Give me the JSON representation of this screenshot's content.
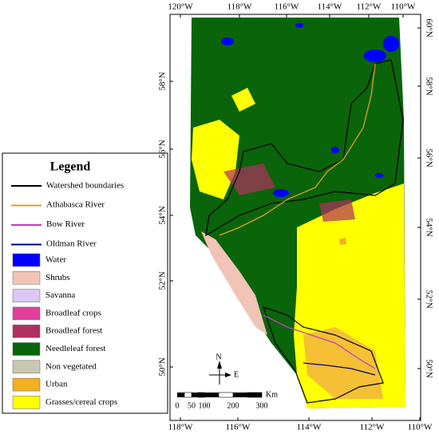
{
  "axes": {
    "top": [
      "120°W",
      "118°W",
      "116°W",
      "114°W",
      "112°W",
      "110°W"
    ],
    "bottom": [
      "118°W",
      "116°W",
      "114°W",
      "112°W",
      "110°W"
    ],
    "left": [
      "58°N",
      "56°N",
      "54°N",
      "52°N",
      "50°N"
    ],
    "right": [
      "60°N",
      "58°N",
      "56°N",
      "54°N",
      "52°N",
      "50°N"
    ]
  },
  "legend": {
    "title": "Legend",
    "lines": [
      {
        "label": "Watershed boundaries",
        "color": "#000000"
      },
      {
        "label": "Athabasca River",
        "color": "#e0a020"
      },
      {
        "label": "Bow River",
        "color": "#c040c0"
      },
      {
        "label": "Oldman River",
        "color": "#000080"
      }
    ],
    "classes": [
      {
        "label": "Water",
        "color": "#0000ff"
      },
      {
        "label": "Shrubs",
        "color": "#f2c4b6"
      },
      {
        "label": "Savanna",
        "color": "#dcc8f2"
      },
      {
        "label": "Broadleaf crops",
        "color": "#e0409a"
      },
      {
        "label": "Broadleaf forest",
        "color": "#b03060"
      },
      {
        "label": "Needleleaf forest",
        "color": "#0a640a"
      },
      {
        "label": "Non vegetated",
        "color": "#c8c8b0"
      },
      {
        "label": "Urban",
        "color": "#f0b020"
      },
      {
        "label": "Grasses/cereal crops",
        "color": "#ffff00"
      }
    ]
  },
  "scale_bar": {
    "labels": [
      "0",
      "50",
      "100",
      "200",
      "300"
    ],
    "unit": "Km"
  },
  "north_arrow": {
    "north": "N",
    "east": "E"
  }
}
